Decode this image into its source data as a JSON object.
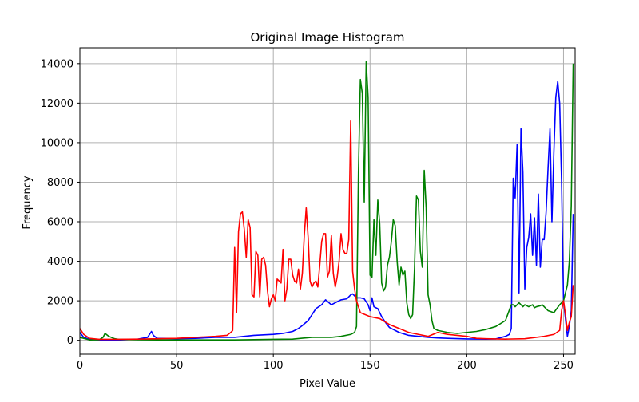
{
  "chart_data": {
    "type": "line",
    "title": "Original Image Histogram",
    "xlabel": "Pixel Value",
    "ylabel": "Frequency",
    "xlim": [
      0,
      256
    ],
    "ylim": [
      -700,
      14800
    ],
    "xticks": [
      0,
      50,
      100,
      150,
      200,
      250
    ],
    "yticks": [
      0,
      2000,
      4000,
      6000,
      8000,
      10000,
      12000,
      14000
    ],
    "grid": true,
    "series": [
      {
        "color": "#0000ff",
        "points": [
          [
            0,
            400
          ],
          [
            2,
            150
          ],
          [
            5,
            50
          ],
          [
            10,
            20
          ],
          [
            20,
            15
          ],
          [
            30,
            60
          ],
          [
            35,
            150
          ],
          [
            37,
            450
          ],
          [
            38,
            250
          ],
          [
            40,
            100
          ],
          [
            50,
            80
          ],
          [
            60,
            100
          ],
          [
            70,
            150
          ],
          [
            80,
            150
          ],
          [
            90,
            250
          ],
          [
            100,
            300
          ],
          [
            105,
            350
          ],
          [
            110,
            450
          ],
          [
            113,
            600
          ],
          [
            115,
            750
          ],
          [
            118,
            1000
          ],
          [
            120,
            1300
          ],
          [
            122,
            1600
          ],
          [
            125,
            1800
          ],
          [
            127,
            2050
          ],
          [
            130,
            1800
          ],
          [
            135,
            2050
          ],
          [
            138,
            2100
          ],
          [
            140,
            2300
          ],
          [
            141,
            2350
          ],
          [
            143,
            2150
          ],
          [
            145,
            2150
          ],
          [
            147,
            2100
          ],
          [
            149,
            1800
          ],
          [
            150,
            1500
          ],
          [
            151,
            2150
          ],
          [
            152,
            1700
          ],
          [
            154,
            1600
          ],
          [
            156,
            1200
          ],
          [
            158,
            900
          ],
          [
            160,
            650
          ],
          [
            165,
            400
          ],
          [
            170,
            250
          ],
          [
            175,
            200
          ],
          [
            180,
            150
          ],
          [
            185,
            120
          ],
          [
            190,
            100
          ],
          [
            200,
            70
          ],
          [
            210,
            60
          ],
          [
            215,
            70
          ],
          [
            220,
            200
          ],
          [
            222,
            300
          ],
          [
            223,
            600
          ],
          [
            224,
            8200
          ],
          [
            225,
            7200
          ],
          [
            226,
            9900
          ],
          [
            227,
            2400
          ],
          [
            228,
            10700
          ],
          [
            229,
            8500
          ],
          [
            230,
            2600
          ],
          [
            231,
            4700
          ],
          [
            232,
            5200
          ],
          [
            233,
            6400
          ],
          [
            234,
            4300
          ],
          [
            235,
            6200
          ],
          [
            236,
            3800
          ],
          [
            237,
            7400
          ],
          [
            238,
            3700
          ],
          [
            239,
            5100
          ],
          [
            240,
            5100
          ],
          [
            241,
            6500
          ],
          [
            242,
            8700
          ],
          [
            243,
            10700
          ],
          [
            244,
            6000
          ],
          [
            245,
            9500
          ],
          [
            246,
            12300
          ],
          [
            247,
            13100
          ],
          [
            248,
            12000
          ],
          [
            249,
            8000
          ],
          [
            250,
            2000
          ],
          [
            252,
            200
          ],
          [
            253,
            700
          ],
          [
            254,
            1500
          ],
          [
            255,
            6400
          ]
        ]
      },
      {
        "color": "#008000",
        "points": [
          [
            0,
            150
          ],
          [
            5,
            20
          ],
          [
            10,
            30
          ],
          [
            12,
            150
          ],
          [
            13,
            350
          ],
          [
            15,
            200
          ],
          [
            18,
            80
          ],
          [
            20,
            50
          ],
          [
            30,
            30
          ],
          [
            40,
            20
          ],
          [
            60,
            20
          ],
          [
            80,
            20
          ],
          [
            100,
            50
          ],
          [
            110,
            60
          ],
          [
            120,
            150
          ],
          [
            125,
            150
          ],
          [
            130,
            150
          ],
          [
            135,
            200
          ],
          [
            140,
            300
          ],
          [
            142,
            400
          ],
          [
            143,
            700
          ],
          [
            144,
            8500
          ],
          [
            145,
            13200
          ],
          [
            146,
            12500
          ],
          [
            147,
            7000
          ],
          [
            148,
            14100
          ],
          [
            149,
            12300
          ],
          [
            150,
            3300
          ],
          [
            151,
            3200
          ],
          [
            152,
            6100
          ],
          [
            153,
            4300
          ],
          [
            154,
            7100
          ],
          [
            155,
            5900
          ],
          [
            156,
            2900
          ],
          [
            157,
            2500
          ],
          [
            158,
            2700
          ],
          [
            159,
            3800
          ],
          [
            160,
            4200
          ],
          [
            161,
            5000
          ],
          [
            162,
            6100
          ],
          [
            163,
            5800
          ],
          [
            164,
            4000
          ],
          [
            165,
            2800
          ],
          [
            166,
            3700
          ],
          [
            167,
            3300
          ],
          [
            168,
            3500
          ],
          [
            169,
            1900
          ],
          [
            170,
            1300
          ],
          [
            171,
            1100
          ],
          [
            172,
            1300
          ],
          [
            173,
            3700
          ],
          [
            174,
            7300
          ],
          [
            175,
            7100
          ],
          [
            176,
            4500
          ],
          [
            177,
            3700
          ],
          [
            178,
            8600
          ],
          [
            179,
            6700
          ],
          [
            180,
            2300
          ],
          [
            181,
            1800
          ],
          [
            182,
            1000
          ],
          [
            183,
            600
          ],
          [
            185,
            500
          ],
          [
            190,
            400
          ],
          [
            195,
            350
          ],
          [
            200,
            400
          ],
          [
            205,
            450
          ],
          [
            210,
            550
          ],
          [
            215,
            700
          ],
          [
            220,
            1000
          ],
          [
            223,
            1800
          ],
          [
            224,
            1800
          ],
          [
            225,
            1700
          ],
          [
            227,
            1900
          ],
          [
            229,
            1700
          ],
          [
            230,
            1800
          ],
          [
            232,
            1700
          ],
          [
            234,
            1800
          ],
          [
            235,
            1650
          ],
          [
            236,
            1700
          ],
          [
            238,
            1750
          ],
          [
            239,
            1800
          ],
          [
            240,
            1700
          ],
          [
            242,
            1500
          ],
          [
            245,
            1400
          ],
          [
            248,
            1800
          ],
          [
            250,
            2000
          ],
          [
            252,
            2800
          ],
          [
            253,
            4000
          ],
          [
            254,
            6800
          ],
          [
            255,
            14000
          ]
        ]
      },
      {
        "color": "#ff0000",
        "points": [
          [
            0,
            600
          ],
          [
            2,
            300
          ],
          [
            5,
            100
          ],
          [
            10,
            50
          ],
          [
            20,
            50
          ],
          [
            30,
            60
          ],
          [
            40,
            80
          ],
          [
            50,
            100
          ],
          [
            60,
            150
          ],
          [
            70,
            200
          ],
          [
            76,
            250
          ],
          [
            78,
            400
          ],
          [
            79,
            500
          ],
          [
            80,
            4700
          ],
          [
            81,
            1400
          ],
          [
            82,
            5500
          ],
          [
            83,
            6400
          ],
          [
            84,
            6500
          ],
          [
            85,
            5600
          ],
          [
            86,
            4200
          ],
          [
            87,
            6100
          ],
          [
            88,
            5700
          ],
          [
            89,
            2300
          ],
          [
            90,
            2200
          ],
          [
            91,
            4500
          ],
          [
            92,
            4300
          ],
          [
            93,
            2200
          ],
          [
            94,
            4100
          ],
          [
            95,
            4200
          ],
          [
            96,
            3800
          ],
          [
            97,
            2500
          ],
          [
            98,
            1700
          ],
          [
            99,
            2100
          ],
          [
            100,
            2300
          ],
          [
            101,
            2000
          ],
          [
            102,
            3100
          ],
          [
            103,
            3000
          ],
          [
            104,
            2900
          ],
          [
            105,
            4600
          ],
          [
            106,
            2000
          ],
          [
            107,
            2600
          ],
          [
            108,
            4100
          ],
          [
            109,
            4100
          ],
          [
            110,
            3300
          ],
          [
            111,
            3000
          ],
          [
            112,
            2900
          ],
          [
            113,
            3600
          ],
          [
            114,
            2600
          ],
          [
            115,
            3400
          ],
          [
            116,
            5300
          ],
          [
            117,
            6700
          ],
          [
            118,
            5200
          ],
          [
            119,
            3000
          ],
          [
            120,
            2700
          ],
          [
            121,
            2900
          ],
          [
            122,
            3000
          ],
          [
            123,
            2700
          ],
          [
            124,
            3800
          ],
          [
            125,
            5000
          ],
          [
            126,
            5400
          ],
          [
            127,
            5400
          ],
          [
            128,
            3200
          ],
          [
            129,
            3500
          ],
          [
            130,
            5300
          ],
          [
            131,
            3400
          ],
          [
            132,
            2700
          ],
          [
            133,
            3200
          ],
          [
            134,
            4000
          ],
          [
            135,
            5400
          ],
          [
            136,
            4600
          ],
          [
            137,
            4400
          ],
          [
            138,
            4400
          ],
          [
            139,
            5100
          ],
          [
            140,
            11100
          ],
          [
            141,
            3500
          ],
          [
            142,
            2600
          ],
          [
            143,
            2000
          ],
          [
            145,
            1400
          ],
          [
            150,
            1200
          ],
          [
            155,
            1100
          ],
          [
            160,
            800
          ],
          [
            165,
            600
          ],
          [
            170,
            400
          ],
          [
            175,
            300
          ],
          [
            180,
            200
          ],
          [
            185,
            400
          ],
          [
            190,
            300
          ],
          [
            195,
            250
          ],
          [
            200,
            200
          ],
          [
            205,
            100
          ],
          [
            210,
            80
          ],
          [
            220,
            60
          ],
          [
            230,
            80
          ],
          [
            240,
            200
          ],
          [
            245,
            300
          ],
          [
            248,
            500
          ],
          [
            249,
            1500
          ],
          [
            250,
            2000
          ],
          [
            251,
            1300
          ],
          [
            252,
            500
          ],
          [
            253,
            900
          ],
          [
            254,
            1200
          ],
          [
            255,
            2800
          ]
        ]
      }
    ]
  }
}
